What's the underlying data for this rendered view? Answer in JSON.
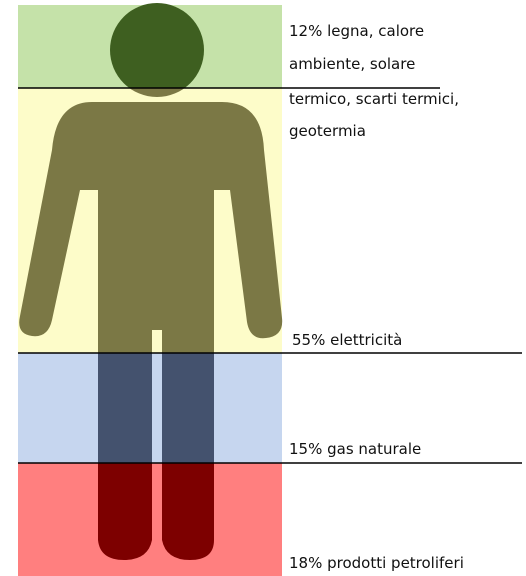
{
  "segments": [
    {
      "lines": [
        "12% legna, calore",
        "ambiente, solare",
        "termico, scarti termici,",
        "geotermia"
      ]
    },
    {
      "lines": [
        "55% elettricità"
      ]
    },
    {
      "lines": [
        "15% gas naturale"
      ]
    },
    {
      "lines": [
        "18% prodotti petroliferi"
      ]
    }
  ]
}
